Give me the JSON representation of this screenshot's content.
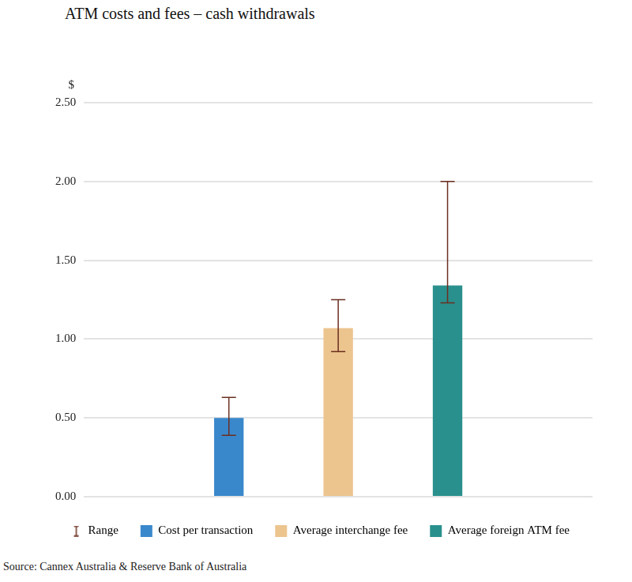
{
  "chart_data": {
    "type": "bar",
    "title": "ATM costs and fees – cash withdrawals",
    "y_label": "$",
    "source": "Source: Cannex Australia & Reserve Bank of Australia",
    "categories": [
      null
    ],
    "range_name": "Range",
    "series": [
      {
        "name": "Cost per transaction",
        "color": "#3a88cc",
        "values": [
          0.5
        ],
        "range": [
          [
            0.39,
            0.63
          ]
        ]
      },
      {
        "name": "Average interchange fee",
        "color": "#ecc48e",
        "values": [
          1.07
        ],
        "range": [
          [
            0.92,
            1.25
          ]
        ]
      },
      {
        "name": "Average foreign ATM fee",
        "color": "#2a908d",
        "values": [
          1.34
        ],
        "range": [
          [
            1.23,
            2.0
          ]
        ]
      }
    ],
    "ylim": [
      0,
      2.5
    ],
    "yticks": [
      {
        "value": 0,
        "label": "0.00"
      },
      {
        "value": 0.5,
        "label": "0.50"
      },
      {
        "value": 1,
        "label": "1.00"
      },
      {
        "value": 1.5,
        "label": "1.50"
      },
      {
        "value": 2,
        "label": "2.00"
      },
      {
        "value": 2.5,
        "label": "2.50"
      }
    ],
    "grid": true,
    "legend": "bottom",
    "tick_labels": "y"
  }
}
